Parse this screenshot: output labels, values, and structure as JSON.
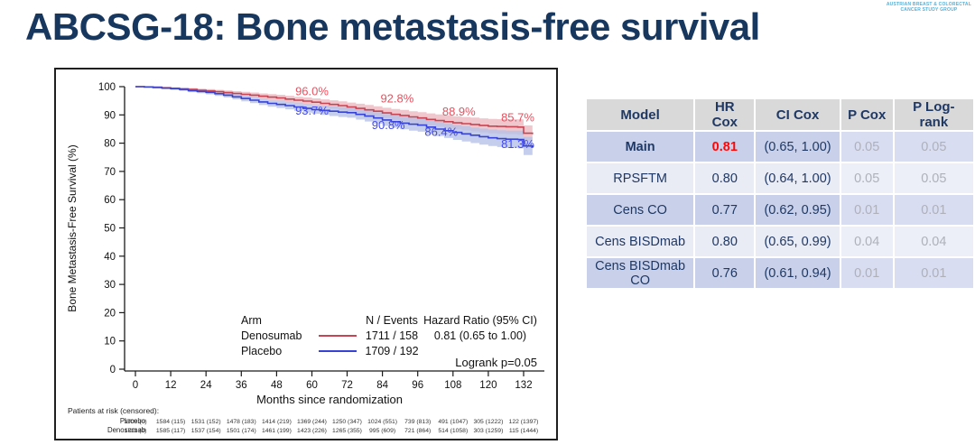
{
  "page": {
    "title": "ABCSG-18: Bone metastasis-free survival"
  },
  "logo": {
    "line1": "AUSTRIAN BREAST & COLORECTAL",
    "line2": "CANCER STUDY GROUP"
  },
  "chart_data": {
    "type": "line",
    "subtype": "kaplan-meier-step",
    "xlabel": "Months since randomization",
    "ylabel": "Bone Metastasis-Free Survival (%)",
    "xlim": [
      0,
      135
    ],
    "ylim": [
      0,
      100
    ],
    "x_ticks": [
      0,
      12,
      24,
      36,
      48,
      60,
      72,
      84,
      96,
      108,
      120,
      132
    ],
    "y_ticks": [
      0,
      10,
      20,
      30,
      40,
      50,
      60,
      70,
      80,
      90,
      100
    ],
    "grid": false,
    "series": [
      {
        "name": "Denosumab",
        "color": "#C74553",
        "band_color": "#ECB9C0",
        "label_color": "#E8515F",
        "band_base": 0.15,
        "band_per_month": 0.02,
        "points": [
          [
            0,
            100
          ],
          [
            3,
            99.9
          ],
          [
            6,
            99.8
          ],
          [
            9,
            99.6
          ],
          [
            12,
            99.4
          ],
          [
            15,
            99.2
          ],
          [
            18,
            99.0
          ],
          [
            21,
            98.7
          ],
          [
            24,
            98.5
          ],
          [
            27,
            98.2
          ],
          [
            30,
            97.9
          ],
          [
            33,
            97.6
          ],
          [
            36,
            97.3
          ],
          [
            39,
            97.0
          ],
          [
            42,
            96.6
          ],
          [
            45,
            96.3
          ],
          [
            48,
            96.0
          ],
          [
            51,
            95.6
          ],
          [
            54,
            95.2
          ],
          [
            57,
            94.9
          ],
          [
            60,
            94.5
          ],
          [
            63,
            94.1
          ],
          [
            66,
            93.7
          ],
          [
            69,
            93.3
          ],
          [
            72,
            92.8
          ],
          [
            75,
            92.3
          ],
          [
            78,
            91.8
          ],
          [
            81,
            91.3
          ],
          [
            84,
            90.7
          ],
          [
            87,
            90.2
          ],
          [
            90,
            89.8
          ],
          [
            93,
            89.3
          ],
          [
            96,
            88.9
          ],
          [
            99,
            88.4
          ],
          [
            102,
            88.0
          ],
          [
            105,
            87.6
          ],
          [
            108,
            87.2
          ],
          [
            111,
            86.9
          ],
          [
            114,
            86.6
          ],
          [
            117,
            86.3
          ],
          [
            120,
            86.0
          ],
          [
            123,
            85.9
          ],
          [
            126,
            85.8
          ],
          [
            130,
            85.7
          ],
          [
            132,
            83.5
          ],
          [
            135,
            83.2
          ]
        ]
      },
      {
        "name": "Placebo",
        "color": "#3743D4",
        "band_color": "#B6C2E9",
        "label_color": "#434AEE",
        "band_base": 0.15,
        "band_per_month": 0.023,
        "points": [
          [
            0,
            100
          ],
          [
            3,
            99.9
          ],
          [
            6,
            99.7
          ],
          [
            9,
            99.5
          ],
          [
            12,
            99.3
          ],
          [
            15,
            99.0
          ],
          [
            18,
            98.6
          ],
          [
            21,
            98.3
          ],
          [
            24,
            98.0
          ],
          [
            27,
            97.5
          ],
          [
            30,
            97.0
          ],
          [
            33,
            96.4
          ],
          [
            36,
            95.8
          ],
          [
            39,
            95.2
          ],
          [
            42,
            94.6
          ],
          [
            45,
            94.1
          ],
          [
            48,
            93.7
          ],
          [
            51,
            93.3
          ],
          [
            54,
            92.8
          ],
          [
            57,
            92.3
          ],
          [
            60,
            91.9
          ],
          [
            63,
            91.6
          ],
          [
            66,
            91.3
          ],
          [
            69,
            91.0
          ],
          [
            72,
            90.8
          ],
          [
            75,
            90.2
          ],
          [
            78,
            89.6
          ],
          [
            81,
            88.9
          ],
          [
            84,
            88.2
          ],
          [
            87,
            87.6
          ],
          [
            90,
            87.1
          ],
          [
            93,
            86.7
          ],
          [
            96,
            86.4
          ],
          [
            99,
            85.7
          ],
          [
            102,
            85.0
          ],
          [
            105,
            84.4
          ],
          [
            108,
            83.8
          ],
          [
            111,
            83.3
          ],
          [
            114,
            82.8
          ],
          [
            117,
            82.3
          ],
          [
            120,
            81.9
          ],
          [
            123,
            81.6
          ],
          [
            126,
            81.4
          ],
          [
            130,
            81.3
          ],
          [
            132,
            79.0
          ],
          [
            135,
            78.5
          ]
        ]
      }
    ],
    "annotations": [
      {
        "text": "96.0%",
        "t": 60,
        "v": 98.3,
        "series": "Denosumab"
      },
      {
        "text": "92.8%",
        "t": 89,
        "v": 95.7,
        "series": "Denosumab"
      },
      {
        "text": "88.9%",
        "t": 110,
        "v": 91.1,
        "series": "Denosumab"
      },
      {
        "text": "85.7%",
        "t": 130,
        "v": 88.9,
        "series": "Denosumab"
      },
      {
        "text": "93.7%",
        "t": 60,
        "v": 91.4,
        "series": "Placebo"
      },
      {
        "text": "90.8%",
        "t": 86,
        "v": 86.3,
        "series": "Placebo"
      },
      {
        "text": "86.4%",
        "t": 104,
        "v": 83.9,
        "series": "Placebo"
      },
      {
        "text": "81.3%",
        "t": 130,
        "v": 79.5,
        "series": "Placebo"
      }
    ],
    "legend": {
      "col1_header": "Arm",
      "col2_header": "N / Events",
      "col3_header": "Hazard Ratio (95% CI)",
      "rows": [
        {
          "arm": "Denosumab",
          "n_events": "1711 / 158",
          "hr": "0.81 (0.65 to 1.00)"
        },
        {
          "arm": "Placebo",
          "n_events": "1709 / 192",
          "hr": ""
        }
      ],
      "footer": "Logrank p=0.05"
    },
    "risk_table": {
      "title": "Patients at risk (censored):",
      "rows": [
        {
          "label": "Placebo",
          "values": [
            "1709 (0)",
            "1584 (115)",
            "1531 (152)",
            "1478 (183)",
            "1414 (219)",
            "1369 (244)",
            "1250 (347)",
            "1024 (551)",
            "739 (813)",
            "491 (1047)",
            "305 (1222)",
            "122 (1397)"
          ]
        },
        {
          "label": "Denosumab",
          "values": [
            "1711 (0)",
            "1585 (117)",
            "1537 (154)",
            "1501 (174)",
            "1461 (199)",
            "1423 (226)",
            "1265 (355)",
            "995 (609)",
            "721 (864)",
            "514 (1058)",
            "303 (1259)",
            "115 (1444)"
          ]
        }
      ]
    }
  },
  "results_table": {
    "headers": [
      "Model",
      "HR Cox",
      "CI Cox",
      "P Cox",
      "P Log-rank"
    ],
    "rows": [
      {
        "model": "Main",
        "hr": "0.81",
        "ci": "(0.65, 1.00)",
        "p_cox": "0.05",
        "p_logrank": "0.05",
        "highlight": true
      },
      {
        "model": "RPSFTM",
        "hr": "0.80",
        "ci": "(0.64, 1.00)",
        "p_cox": "0.05",
        "p_logrank": "0.05",
        "highlight": false
      },
      {
        "model": "Cens CO",
        "hr": "0.77",
        "ci": "(0.62, 0.95)",
        "p_cox": "0.01",
        "p_logrank": "0.01",
        "highlight": false
      },
      {
        "model": "Cens BISDmab",
        "hr": "0.80",
        "ci": "(0.65, 0.99)",
        "p_cox": "0.04",
        "p_logrank": "0.04",
        "highlight": false
      },
      {
        "model": "Cens BISDmab CO",
        "hr": "0.76",
        "ci": "(0.61, 0.94)",
        "p_cox": "0.01",
        "p_logrank": "0.01",
        "highlight": false
      }
    ],
    "colors": {
      "header_bg": "#D9D9D9",
      "row_odd_bg": "#C9D1EA",
      "row_even_bg": "#E9EBF5",
      "text_navy": "#1F3864",
      "hr_highlight": "#FF0707",
      "p_text_gray": "#AEB0BA"
    }
  }
}
